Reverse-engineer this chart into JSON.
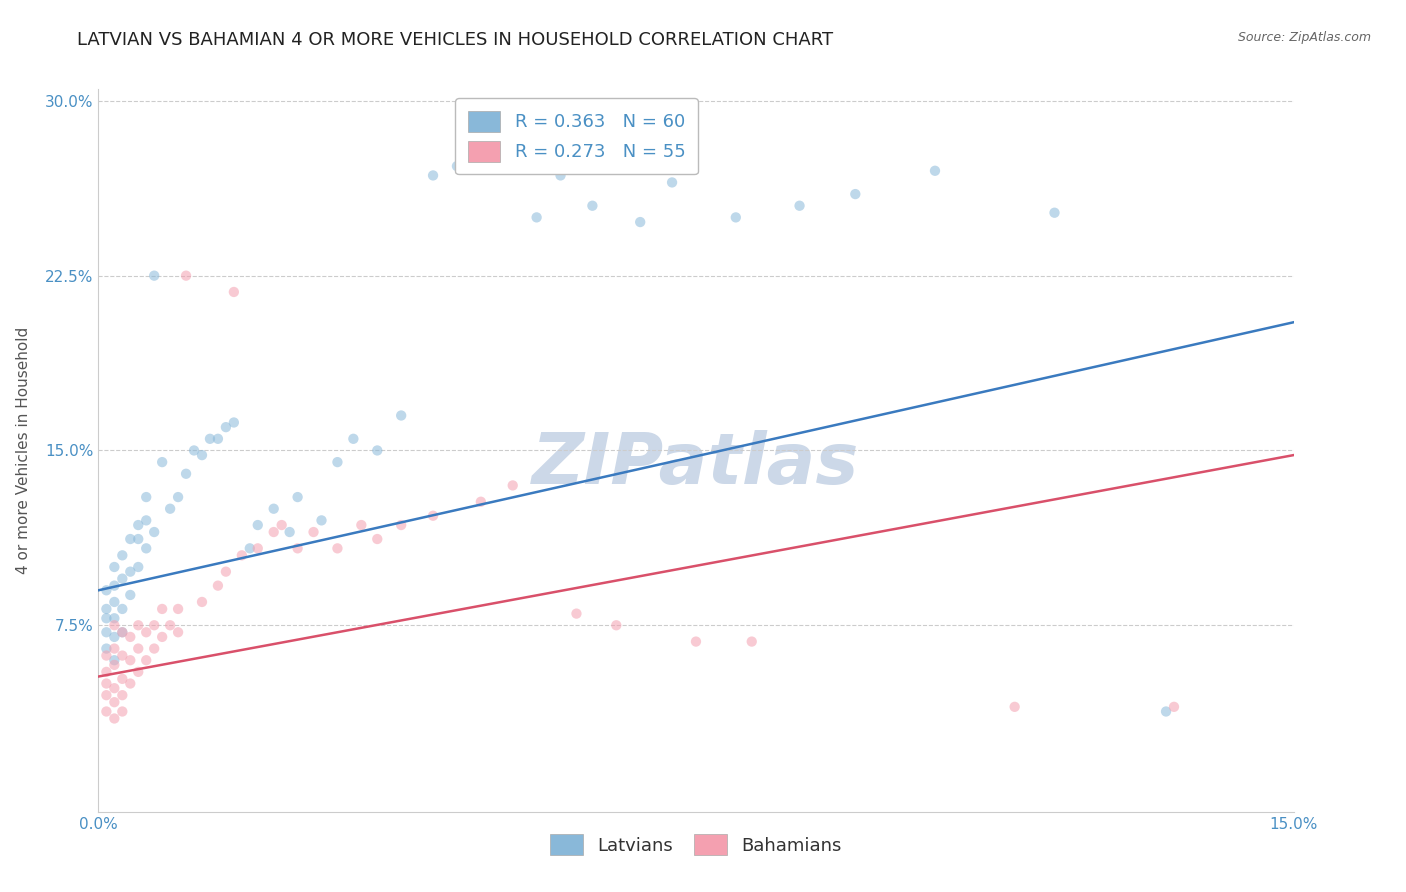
{
  "title": "LATVIAN VS BAHAMIAN 4 OR MORE VEHICLES IN HOUSEHOLD CORRELATION CHART",
  "source": "Source: ZipAtlas.com",
  "ylabel_label": "4 or more Vehicles in Household",
  "watermark": "ZIPatlas",
  "legend_latvian": "R = 0.363   N = 60",
  "legend_bahamian": "R = 0.273   N = 55",
  "latvian_color": "#89b8d9",
  "bahamian_color": "#f4a0b0",
  "latvian_line_color": "#3a7abf",
  "bahamian_line_color": "#d9506a",
  "xlim": [
    0.0,
    0.15
  ],
  "ylim": [
    -0.005,
    0.305
  ],
  "y_ticks": [
    0.0,
    0.075,
    0.15,
    0.225,
    0.3
  ],
  "y_tick_labels": [
    "",
    "7.5%",
    "15.0%",
    "22.5%",
    "30.0%"
  ],
  "background_color": "#ffffff",
  "grid_color": "#cccccc",
  "title_fontsize": 13,
  "axis_fontsize": 11,
  "tick_fontsize": 11,
  "legend_fontsize": 13,
  "watermark_fontsize": 52,
  "watermark_color": "#ccd8e8",
  "scatter_alpha": 0.55,
  "scatter_size": 55,
  "latvian_x": [
    0.001,
    0.001,
    0.001,
    0.001,
    0.001,
    0.002,
    0.002,
    0.002,
    0.002,
    0.002,
    0.002,
    0.003,
    0.003,
    0.003,
    0.003,
    0.004,
    0.004,
    0.004,
    0.005,
    0.005,
    0.005,
    0.006,
    0.006,
    0.006,
    0.007,
    0.007,
    0.008,
    0.009,
    0.01,
    0.011,
    0.012,
    0.013,
    0.014,
    0.015,
    0.016,
    0.017,
    0.019,
    0.02,
    0.022,
    0.024,
    0.025,
    0.028,
    0.03,
    0.032,
    0.035,
    0.038,
    0.042,
    0.045,
    0.05,
    0.055,
    0.058,
    0.062,
    0.068,
    0.072,
    0.08,
    0.088,
    0.095,
    0.105,
    0.12,
    0.134
  ],
  "latvian_y": [
    0.065,
    0.072,
    0.078,
    0.082,
    0.09,
    0.06,
    0.07,
    0.078,
    0.085,
    0.092,
    0.1,
    0.072,
    0.082,
    0.095,
    0.105,
    0.088,
    0.098,
    0.112,
    0.1,
    0.112,
    0.118,
    0.108,
    0.12,
    0.13,
    0.115,
    0.225,
    0.145,
    0.125,
    0.13,
    0.14,
    0.15,
    0.148,
    0.155,
    0.155,
    0.16,
    0.162,
    0.108,
    0.118,
    0.125,
    0.115,
    0.13,
    0.12,
    0.145,
    0.155,
    0.15,
    0.165,
    0.268,
    0.272,
    0.278,
    0.25,
    0.268,
    0.255,
    0.248,
    0.265,
    0.25,
    0.255,
    0.26,
    0.27,
    0.252,
    0.038
  ],
  "bahamian_x": [
    0.001,
    0.001,
    0.001,
    0.001,
    0.001,
    0.002,
    0.002,
    0.002,
    0.002,
    0.002,
    0.002,
    0.003,
    0.003,
    0.003,
    0.003,
    0.003,
    0.004,
    0.004,
    0.004,
    0.005,
    0.005,
    0.005,
    0.006,
    0.006,
    0.007,
    0.007,
    0.008,
    0.008,
    0.009,
    0.01,
    0.01,
    0.011,
    0.013,
    0.015,
    0.016,
    0.017,
    0.018,
    0.02,
    0.022,
    0.023,
    0.025,
    0.027,
    0.03,
    0.033,
    0.035,
    0.038,
    0.042,
    0.048,
    0.052,
    0.06,
    0.065,
    0.075,
    0.082,
    0.115,
    0.135
  ],
  "bahamian_y": [
    0.038,
    0.045,
    0.05,
    0.055,
    0.062,
    0.035,
    0.042,
    0.048,
    0.058,
    0.065,
    0.075,
    0.038,
    0.045,
    0.052,
    0.062,
    0.072,
    0.05,
    0.06,
    0.07,
    0.055,
    0.065,
    0.075,
    0.06,
    0.072,
    0.065,
    0.075,
    0.07,
    0.082,
    0.075,
    0.072,
    0.082,
    0.225,
    0.085,
    0.092,
    0.098,
    0.218,
    0.105,
    0.108,
    0.115,
    0.118,
    0.108,
    0.115,
    0.108,
    0.118,
    0.112,
    0.118,
    0.122,
    0.128,
    0.135,
    0.08,
    0.075,
    0.068,
    0.068,
    0.04,
    0.04
  ]
}
